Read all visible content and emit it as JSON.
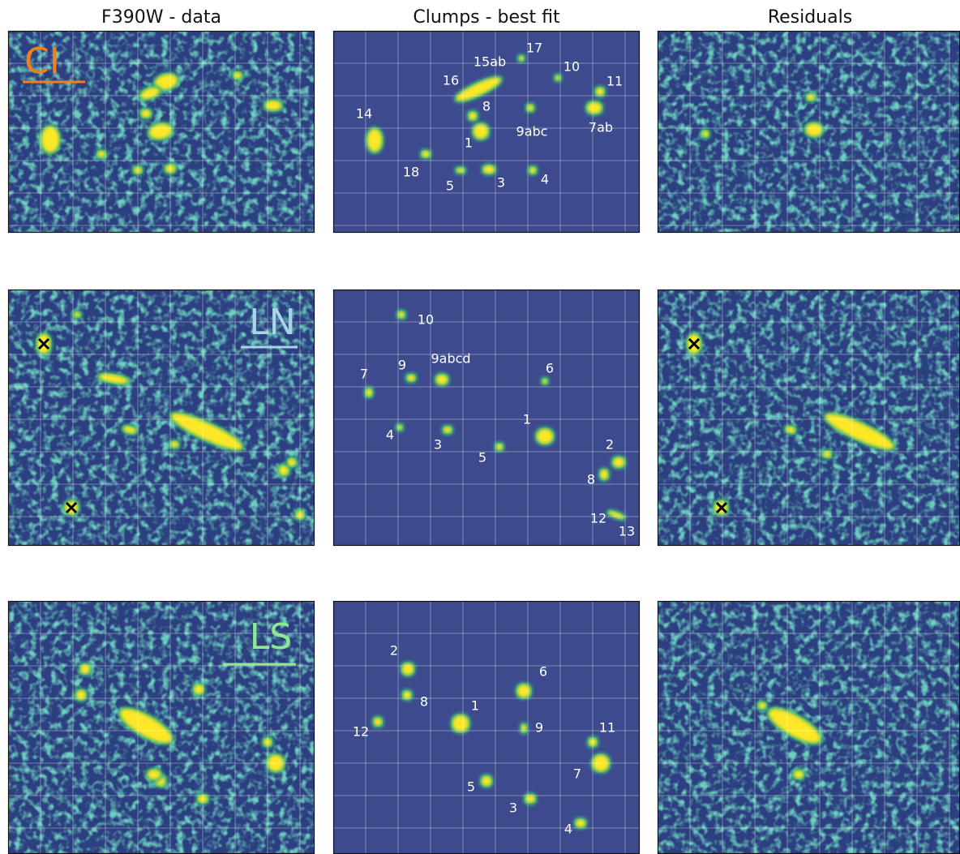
{
  "columns": [
    "F390W - data",
    "Clumps - best fit",
    "Residuals"
  ],
  "rows": [
    {
      "region": "CI",
      "clumps": [
        "17",
        "15ab",
        "10",
        "16",
        "11",
        "8",
        "14",
        "9abc",
        "7ab",
        "1",
        "18",
        "3",
        "4",
        "5"
      ]
    },
    {
      "region": "LN",
      "clumps": [
        "10",
        "9abcd",
        "9",
        "6",
        "7",
        "1",
        "4",
        "3",
        "2",
        "5",
        "8",
        "12",
        "13"
      ]
    },
    {
      "region": "LS",
      "clumps": [
        "2",
        "6",
        "8",
        "1",
        "9",
        "11",
        "12",
        "7",
        "5",
        "3",
        "4"
      ]
    }
  ]
}
